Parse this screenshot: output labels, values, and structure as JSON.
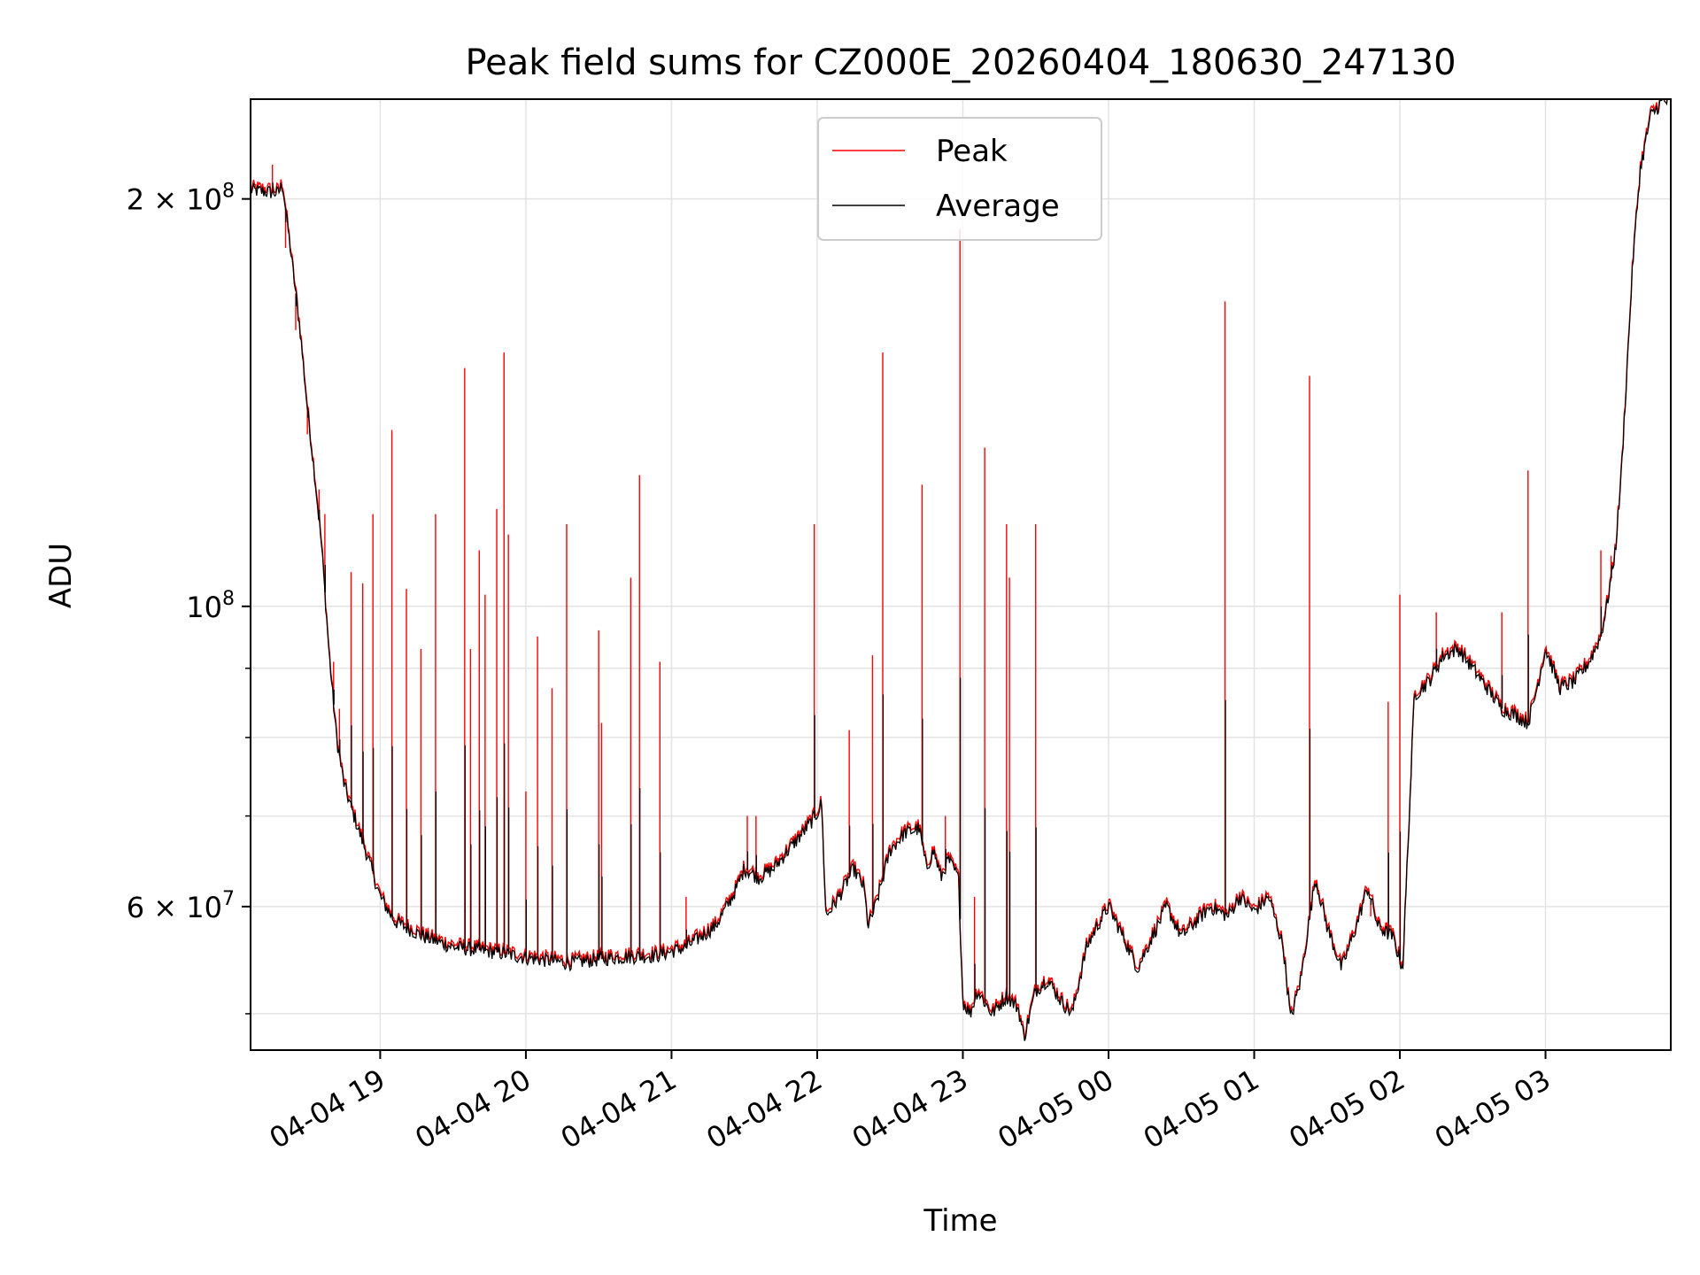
{
  "chart_data": {
    "type": "line",
    "title": "Peak field sums for CZ000E_20260404_180630_247130",
    "xlabel": "Time",
    "ylabel": "ADU",
    "yscale": "log",
    "ylim": [
      47000000,
      237000000
    ],
    "xlim_hours": [
      18.11,
      27.86
    ],
    "grid": true,
    "legend_position": "top-center",
    "x_ticks": [
      {
        "hour": 19,
        "label": "04-04 19"
      },
      {
        "hour": 20,
        "label": "04-04 20"
      },
      {
        "hour": 21,
        "label": "04-04 21"
      },
      {
        "hour": 22,
        "label": "04-04 22"
      },
      {
        "hour": 23,
        "label": "04-04 23"
      },
      {
        "hour": 24,
        "label": "04-05 00"
      },
      {
        "hour": 25,
        "label": "04-05 01"
      },
      {
        "hour": 26,
        "label": "04-05 02"
      },
      {
        "hour": 27,
        "label": "04-05 03"
      }
    ],
    "y_ticks_major": [
      {
        "value": 60000000,
        "label": "6 × 10",
        "exp": "7"
      },
      {
        "value": 100000000,
        "label": "10",
        "exp": "8"
      },
      {
        "value": 200000000,
        "label": "2 × 10",
        "exp": "8"
      }
    ],
    "y_ticks_minor": [
      50000000,
      70000000,
      80000000,
      90000000
    ],
    "series": [
      {
        "name": "Peak",
        "color": "#ff0000",
        "spikes": [
          [
            18.26,
            212000000
          ],
          [
            18.35,
            184000000
          ],
          [
            18.42,
            160000000
          ],
          [
            18.5,
            134000000
          ],
          [
            18.58,
            122000000
          ],
          [
            18.62,
            117000000
          ],
          [
            18.68,
            91000000
          ],
          [
            18.72,
            84000000
          ],
          [
            18.8,
            106000000
          ],
          [
            18.88,
            104000000
          ],
          [
            18.95,
            117000000
          ],
          [
            19.08,
            135000000
          ],
          [
            19.18,
            103000000
          ],
          [
            19.28,
            93000000
          ],
          [
            19.38,
            117000000
          ],
          [
            19.58,
            150000000
          ],
          [
            19.62,
            93000000
          ],
          [
            19.68,
            110000000
          ],
          [
            19.72,
            102000000
          ],
          [
            19.8,
            118000000
          ],
          [
            19.85,
            154000000
          ],
          [
            19.88,
            113000000
          ],
          [
            20.0,
            73000000
          ],
          [
            20.08,
            95000000
          ],
          [
            20.18,
            87000000
          ],
          [
            20.28,
            115000000
          ],
          [
            20.5,
            96000000
          ],
          [
            20.52,
            82000000
          ],
          [
            20.72,
            105000000
          ],
          [
            20.78,
            125000000
          ],
          [
            20.92,
            91000000
          ],
          [
            21.1,
            61000000
          ],
          [
            21.52,
            70000000
          ],
          [
            21.58,
            70000000
          ],
          [
            21.98,
            115000000
          ],
          [
            22.22,
            81000000
          ],
          [
            22.38,
            92000000
          ],
          [
            22.45,
            154000000
          ],
          [
            22.72,
            123000000
          ],
          [
            22.88,
            70000000
          ],
          [
            22.98,
            190000000
          ],
          [
            23.08,
            61000000
          ],
          [
            23.15,
            131000000
          ],
          [
            23.3,
            115000000
          ],
          [
            23.32,
            105000000
          ],
          [
            23.5,
            115000000
          ],
          [
            24.8,
            168000000
          ],
          [
            25.38,
            148000000
          ],
          [
            25.8,
            59000000
          ],
          [
            25.92,
            85000000
          ],
          [
            26.0,
            102000000
          ],
          [
            26.25,
            99000000
          ],
          [
            26.7,
            99000000
          ],
          [
            26.88,
            126000000
          ],
          [
            27.38,
            110000000
          ],
          [
            27.45,
            109000000
          ]
        ]
      },
      {
        "name": "Average",
        "color": "#000000",
        "baseline": [
          [
            18.11,
            203000000
          ],
          [
            18.3,
            202000000
          ],
          [
            18.33,
            205000000
          ],
          [
            18.38,
            185000000
          ],
          [
            18.45,
            160000000
          ],
          [
            18.5,
            140000000
          ],
          [
            18.55,
            125000000
          ],
          [
            18.6,
            110000000
          ],
          [
            18.65,
            92000000
          ],
          [
            18.7,
            80000000
          ],
          [
            18.75,
            74000000
          ],
          [
            18.8,
            71000000
          ],
          [
            18.9,
            66000000
          ],
          [
            19.0,
            61000000
          ],
          [
            19.1,
            58500000
          ],
          [
            19.3,
            57000000
          ],
          [
            19.5,
            56000000
          ],
          [
            19.8,
            55500000
          ],
          [
            20.0,
            55000000
          ],
          [
            20.3,
            54500000
          ],
          [
            20.6,
            55000000
          ],
          [
            20.9,
            55200000
          ],
          [
            21.1,
            56000000
          ],
          [
            21.3,
            58000000
          ],
          [
            21.38,
            60000000
          ],
          [
            21.45,
            62000000
          ],
          [
            21.5,
            64000000
          ],
          [
            21.6,
            63000000
          ],
          [
            21.7,
            64000000
          ],
          [
            21.8,
            66000000
          ],
          [
            21.9,
            68000000
          ],
          [
            21.99,
            70000000
          ],
          [
            22.03,
            71500000
          ],
          [
            22.06,
            59000000
          ],
          [
            22.15,
            61000000
          ],
          [
            22.25,
            64000000
          ],
          [
            22.32,
            62000000
          ],
          [
            22.35,
            58000000
          ],
          [
            22.4,
            60000000
          ],
          [
            22.5,
            66000000
          ],
          [
            22.6,
            68000000
          ],
          [
            22.7,
            68500000
          ],
          [
            22.75,
            64000000
          ],
          [
            22.8,
            66000000
          ],
          [
            22.85,
            63000000
          ],
          [
            22.9,
            65000000
          ],
          [
            22.97,
            63000000
          ],
          [
            23.0,
            51000000
          ],
          [
            23.05,
            50000000
          ],
          [
            23.1,
            52000000
          ],
          [
            23.2,
            50000000
          ],
          [
            23.3,
            51500000
          ],
          [
            23.38,
            50500000
          ],
          [
            23.42,
            48000000
          ],
          [
            23.5,
            52000000
          ],
          [
            23.58,
            53000000
          ],
          [
            23.68,
            51000000
          ],
          [
            23.75,
            50000000
          ],
          [
            23.85,
            56000000
          ],
          [
            23.92,
            58000000
          ],
          [
            24.0,
            60000000
          ],
          [
            24.1,
            57000000
          ],
          [
            24.2,
            54000000
          ],
          [
            24.3,
            57000000
          ],
          [
            24.4,
            60000000
          ],
          [
            24.5,
            57000000
          ],
          [
            24.6,
            58500000
          ],
          [
            24.7,
            60000000
          ],
          [
            24.82,
            59000000
          ],
          [
            24.9,
            61000000
          ],
          [
            25.0,
            59500000
          ],
          [
            25.1,
            61000000
          ],
          [
            25.2,
            56000000
          ],
          [
            25.25,
            49500000
          ],
          [
            25.32,
            53000000
          ],
          [
            25.42,
            63000000
          ],
          [
            25.5,
            58000000
          ],
          [
            25.6,
            54000000
          ],
          [
            25.7,
            58000000
          ],
          [
            25.78,
            62000000
          ],
          [
            25.85,
            58000000
          ],
          [
            25.95,
            57000000
          ],
          [
            26.02,
            54000000
          ],
          [
            26.1,
            86000000
          ],
          [
            26.2,
            88000000
          ],
          [
            26.3,
            92000000
          ],
          [
            26.4,
            93000000
          ],
          [
            26.5,
            90000000
          ],
          [
            26.6,
            87000000
          ],
          [
            26.7,
            84000000
          ],
          [
            26.8,
            83000000
          ],
          [
            26.88,
            82000000
          ],
          [
            26.92,
            85000000
          ],
          [
            27.0,
            93000000
          ],
          [
            27.1,
            87000000
          ],
          [
            27.2,
            88000000
          ],
          [
            27.3,
            91000000
          ],
          [
            27.38,
            95000000
          ],
          [
            27.42,
            100000000
          ],
          [
            27.48,
            110000000
          ],
          [
            27.52,
            125000000
          ],
          [
            27.56,
            150000000
          ],
          [
            27.6,
            180000000
          ],
          [
            27.65,
            210000000
          ],
          [
            27.72,
            230000000
          ],
          [
            27.8,
            236000000
          ],
          [
            27.86,
            236000000
          ]
        ]
      }
    ]
  }
}
